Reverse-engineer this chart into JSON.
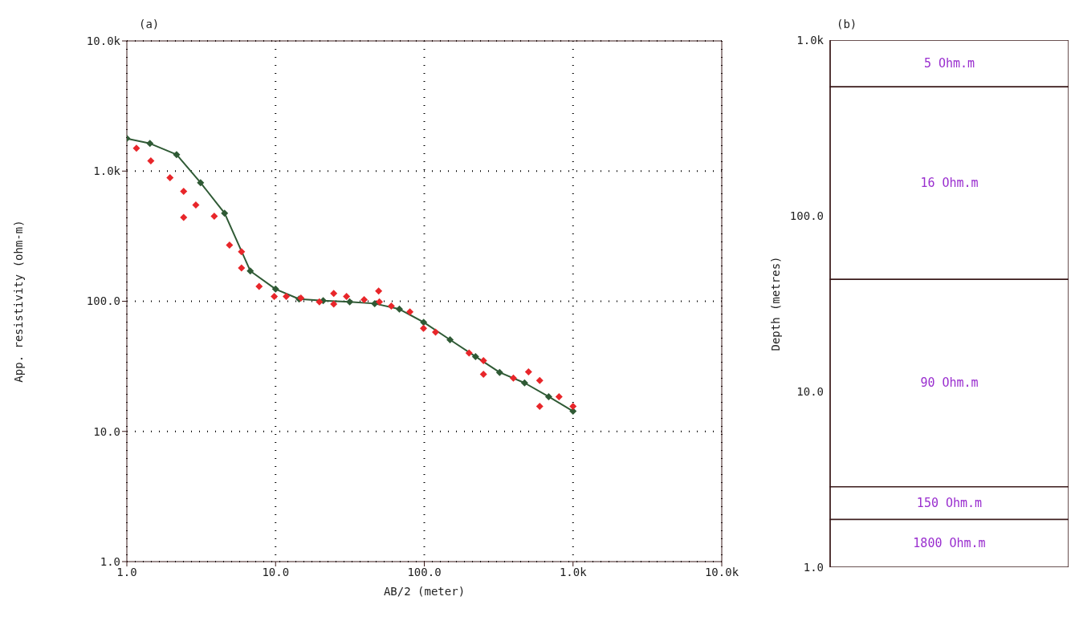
{
  "chart_data": [
    {
      "type": "line",
      "xlabel": "AB/2 (meter)",
      "ylabel": "App. resistivity (ohm-m)",
      "annotations": [
        "(a)"
      ],
      "log": "xy",
      "grid": true,
      "marker": "diamond",
      "xlim": [
        1,
        10000
      ],
      "xticks": [
        {
          "value": 1,
          "label": "1.0"
        },
        {
          "value": 10,
          "label": "10.0"
        },
        {
          "value": 100,
          "label": "100.0"
        },
        {
          "value": 1000,
          "label": "1.0k"
        },
        {
          "value": 10000,
          "label": "10.0k"
        }
      ],
      "ylim": [
        1,
        10000
      ],
      "yticks": [
        {
          "value": 1,
          "label": "1.0"
        },
        {
          "value": 10,
          "label": "10.0"
        },
        {
          "value": 100,
          "label": "100.0"
        },
        {
          "value": 1000,
          "label": "1.0k"
        },
        {
          "value": 10000,
          "label": "10.0k"
        }
      ],
      "series": [
        {
          "type": "scatter",
          "color": "#e8262a",
          "x": [
            1.16,
            1.45,
            1.95,
            2.41,
            2.91,
            2.41,
            3.87,
            4.9,
            5.9,
            5.9,
            7.75,
            9.8,
            11.8,
            14.8,
            19.7,
            24.6,
            24.6,
            30,
            39.4,
            49.3,
            49.9,
            60,
            80,
            98.8,
            119,
            200,
            250,
            250,
            397,
            502,
            597,
            597,
            805,
            1000
          ],
          "values": [
            1500,
            1200,
            890,
            700,
            550,
            440,
            450,
            270,
            240,
            180,
            130,
            109,
            109,
            106,
            99,
            115,
            95,
            109,
            103,
            120,
            99,
            92,
            83,
            62,
            58,
            40,
            35,
            27.5,
            25.7,
            28.7,
            24.6,
            15.6,
            18.5,
            15.6
          ]
        },
        {
          "type": "line",
          "color": "#2f5a35",
          "x": [
            1,
            1.43,
            2.16,
            3.13,
            4.54,
            6.76,
            10,
            14.4,
            20.9,
            31.5,
            46.4,
            68,
            99,
            149,
            221,
            321,
            472,
            686,
            1000
          ],
          "values": [
            1780,
            1630,
            1340,
            815,
            475,
            171,
            124,
            104,
            101,
            99,
            96,
            87,
            69,
            50.6,
            37.6,
            28.4,
            23.6,
            18.5,
            14.3
          ]
        }
      ]
    },
    {
      "type": "bar",
      "ylabel": "Depth (metres)",
      "annotations": [
        "(b)"
      ],
      "log": true,
      "ylim": [
        1,
        1000
      ],
      "yticks": [
        {
          "value": 1,
          "label": "1.0"
        },
        {
          "value": 10,
          "label": "10.0"
        },
        {
          "value": 100,
          "label": "100.0"
        },
        {
          "value": 1000,
          "label": "1.0k"
        }
      ],
      "categories": [
        null
      ],
      "series": [
        {
          "name": "5 Ohm.m",
          "color": "#ffffff",
          "base": [
            542
          ],
          "values": [
            458
          ]
        },
        {
          "name": "16 Ohm.m",
          "color": "#ffffff",
          "base": [
            43.5
          ],
          "values": [
            498.5
          ]
        },
        {
          "name": "90 Ohm.m",
          "color": "#ffffff",
          "base": [
            2.87
          ],
          "values": [
            40.63
          ]
        },
        {
          "name": "150 Ohm.m",
          "color": "#ffffff",
          "base": [
            1.87
          ],
          "values": [
            1
          ]
        },
        {
          "name": "1800 Ohm.m",
          "color": "#ffffff",
          "base": [
            1
          ],
          "values": [
            0.87
          ]
        }
      ]
    }
  ]
}
